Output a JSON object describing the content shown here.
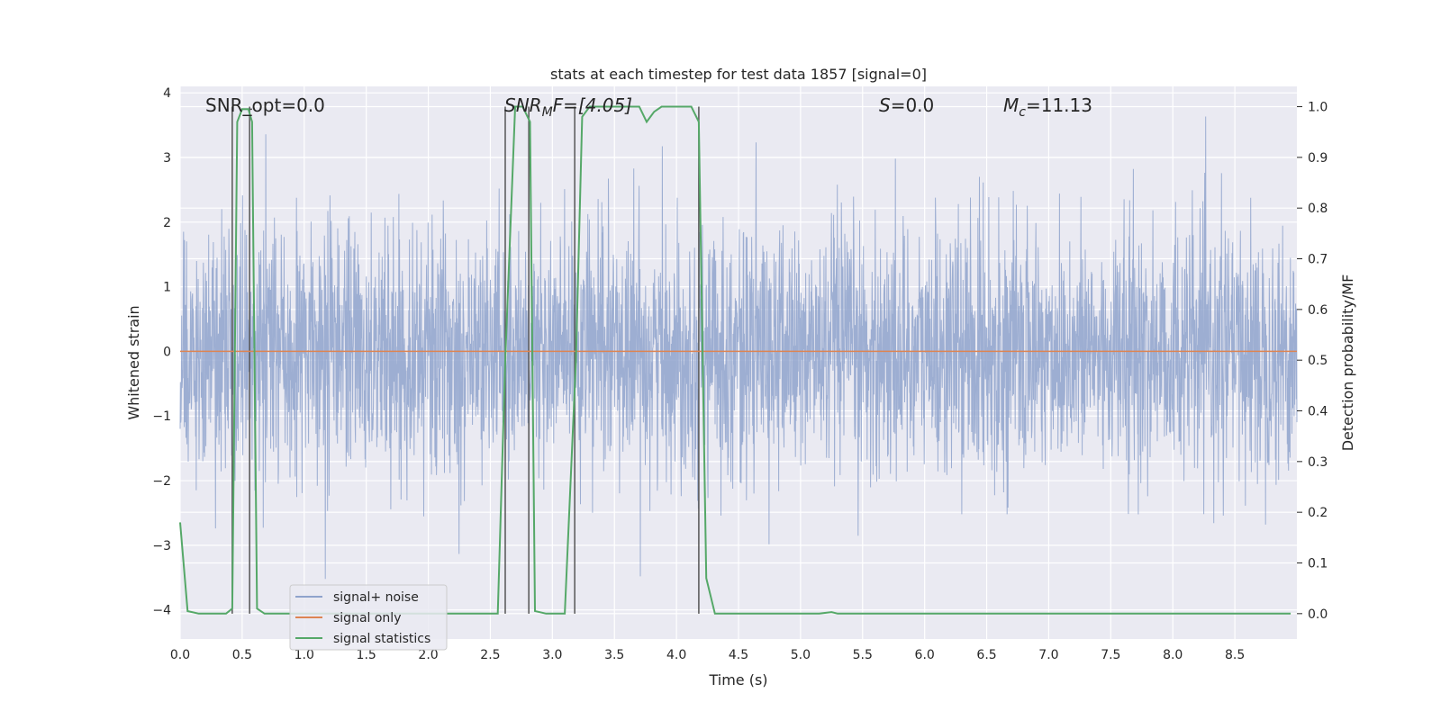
{
  "chart_data": {
    "type": "line",
    "title": "stats at each timestep for test data 1857 [signal=0]",
    "xlabel": "Time (s)",
    "ylabel_left": "Whitened strain",
    "ylabel_right": "Detection probability/MF",
    "xlim": [
      0,
      9.0
    ],
    "ylim_left": [
      -4.45,
      4.1
    ],
    "ylim_right": [
      -0.05,
      1.04
    ],
    "x_ticks": [
      0.0,
      0.5,
      1.0,
      1.5,
      2.0,
      2.5,
      3.0,
      3.5,
      4.0,
      4.5,
      5.0,
      5.5,
      6.0,
      6.5,
      7.0,
      7.5,
      8.0,
      8.5
    ],
    "x_tick_labels": [
      "0.0",
      "0.5",
      "1.0",
      "1.5",
      "2.0",
      "2.5",
      "3.0",
      "3.5",
      "4.0",
      "4.5",
      "5.0",
      "5.5",
      "6.0",
      "6.5",
      "7.0",
      "7.5",
      "8.0",
      "8.5"
    ],
    "y_left_ticks": [
      -4,
      -3,
      -2,
      -1,
      0,
      1,
      2,
      3,
      4
    ],
    "y_left_tick_labels": [
      "−4",
      "−3",
      "−2",
      "−1",
      "0",
      "1",
      "2",
      "3",
      "4"
    ],
    "y_right_ticks": [
      0.0,
      0.1,
      0.2,
      0.3,
      0.4,
      0.5,
      0.6,
      0.7,
      0.8,
      0.9,
      1.0
    ],
    "y_right_tick_labels": [
      "0.0",
      "0.1",
      "0.2",
      "0.3",
      "0.4",
      "0.5",
      "0.6",
      "0.7",
      "0.8",
      "0.9",
      "1.0"
    ],
    "grid": true,
    "legend_position": "lower-left",
    "annotations": {
      "snr_opt": "SNR_opt=0.0",
      "snr_mf_main": "SNR",
      "snr_mf_sub": "M",
      "snr_mf_rest": "F=[4.05]",
      "s_main": "S",
      "s_rest": "=0.0",
      "mc_main": "M",
      "mc_sub": "c",
      "mc_rest": "=11.13"
    },
    "series": [
      {
        "name": "signal+ noise",
        "color": "#8fa3cc",
        "axis": "left",
        "description_values": "random whitened noise samples roughly within -2.6..3 with spikes to about ±3.7",
        "amplitude_typical": 1.9
      },
      {
        "name": "signal only",
        "color": "#dd8452",
        "axis": "left",
        "values_constant": 0.0
      },
      {
        "name": "signal statistics",
        "color": "#55a868",
        "axis": "right",
        "x": [
          0.0,
          0.06,
          0.15,
          0.37,
          0.42,
          0.46,
          0.5,
          0.55,
          0.58,
          0.62,
          0.68,
          1.0,
          1.5,
          2.0,
          2.56,
          2.62,
          2.7,
          2.76,
          2.82,
          2.86,
          2.95,
          3.1,
          3.19,
          3.24,
          3.3,
          3.4,
          3.6,
          3.7,
          3.76,
          3.82,
          3.88,
          4.0,
          4.12,
          4.18,
          4.24,
          4.31,
          4.5,
          5.0,
          5.15,
          5.25,
          5.3,
          6.0,
          7.0,
          8.0,
          8.95
        ],
        "y": [
          0.18,
          0.005,
          0.0,
          0.0,
          0.01,
          0.97,
          0.995,
          0.995,
          0.97,
          0.01,
          0.0,
          0.0,
          0.0,
          0.0,
          0.0,
          0.5,
          1.0,
          1.0,
          0.97,
          0.005,
          0.0,
          0.0,
          0.5,
          0.98,
          1.0,
          1.0,
          1.0,
          1.0,
          0.97,
          0.99,
          1.0,
          1.0,
          1.0,
          0.97,
          0.07,
          0.0,
          0.0,
          0.0,
          0.0,
          0.003,
          0.0,
          0.0,
          0.0,
          0.0,
          0.0
        ]
      }
    ],
    "vertical_markers_x": [
      0.42,
      0.56,
      2.62,
      2.81,
      3.18,
      4.18
    ],
    "horizontal_markers": [
      {
        "x0": 0.5,
        "x1": 0.58,
        "y_right": 0.995
      }
    ]
  }
}
